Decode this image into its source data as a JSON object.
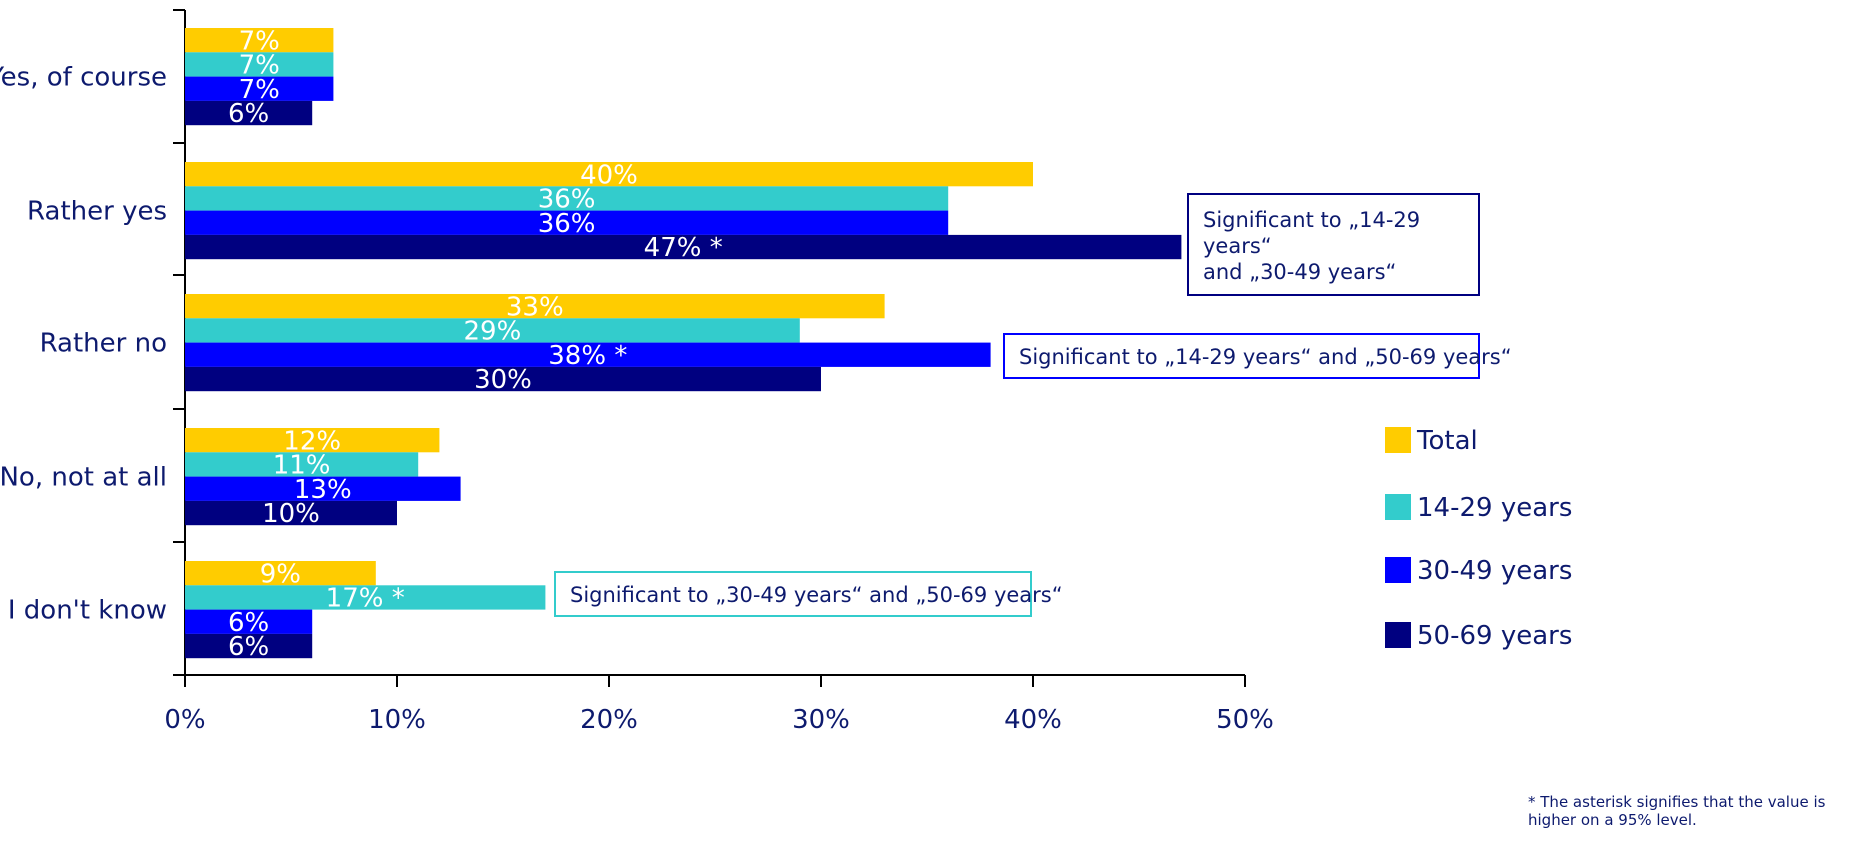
{
  "chart_data": {
    "type": "bar",
    "orientation": "horizontal",
    "categories": [
      "Yes, of course",
      "Rather yes",
      "Rather no",
      "No, not at all",
      "I don't know"
    ],
    "series": [
      {
        "name": "Total",
        "color": "#ffcc00",
        "values": [
          7,
          40,
          33,
          12,
          9
        ],
        "labels": [
          "7%",
          "40%",
          "33%",
          "12%",
          "9%"
        ]
      },
      {
        "name": "14-29 years",
        "color": "#33cccc",
        "values": [
          7,
          36,
          29,
          11,
          17
        ],
        "labels": [
          "7%",
          "36%",
          "29%",
          "11%",
          "17% *"
        ]
      },
      {
        "name": "30-49 years",
        "color": "#0000ff",
        "values": [
          7,
          36,
          38,
          13,
          6
        ],
        "labels": [
          "7%",
          "36%",
          "38% *",
          "13%",
          "6%"
        ]
      },
      {
        "name": "50-69 years",
        "color": "#000080",
        "values": [
          6,
          47,
          30,
          10,
          6
        ],
        "labels": [
          "6%",
          "47% *",
          "30%",
          "10%",
          "6%"
        ]
      }
    ],
    "xlim": [
      0,
      50
    ],
    "xticks": [
      "0%",
      "10%",
      "20%",
      "30%",
      "40%",
      "50%"
    ],
    "grid": false,
    "legend_position": "right",
    "annotations": [
      {
        "lines": [
          "Significant to „14-29",
          "years“",
          "and „30-49 years“"
        ],
        "border_color": "#000080"
      },
      {
        "lines": [
          "Significant to „14-29 years“ and „50-69 years“"
        ],
        "border_color": "#0000ff"
      },
      {
        "lines": [
          "Significant to „30-49 years“ and „50-69 years“"
        ],
        "border_color": "#33cccc"
      }
    ],
    "footnote": "* The asterisk signifies that the value is higher on a 95% level."
  }
}
